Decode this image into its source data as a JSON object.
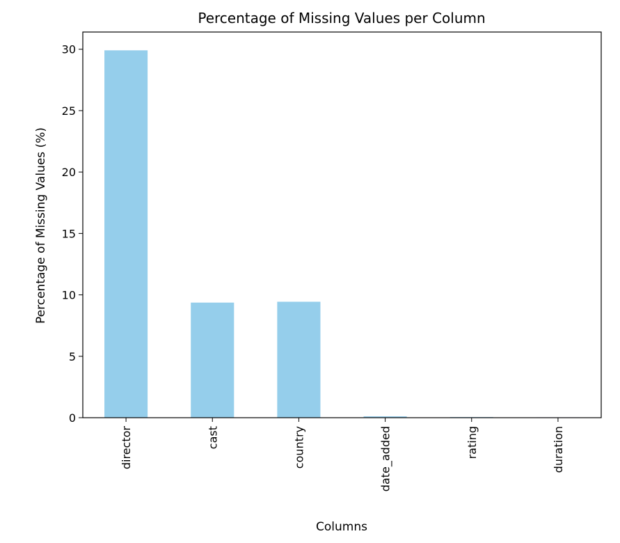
{
  "chart_data": {
    "type": "bar",
    "title": "Percentage of Missing Values per Column",
    "xlabel": "Columns",
    "ylabel": "Percentage of Missing Values (%)",
    "categories": [
      "director",
      "cast",
      "country",
      "date_added",
      "rating",
      "duration"
    ],
    "values": [
      29.91,
      9.37,
      9.44,
      0.11,
      0.05,
      0.03
    ],
    "ylim": [
      0,
      31.4
    ],
    "yticks": [
      0,
      5,
      10,
      15,
      20,
      25,
      30
    ],
    "bar_color": "#95ceeb",
    "grid": false,
    "legend": "none"
  }
}
